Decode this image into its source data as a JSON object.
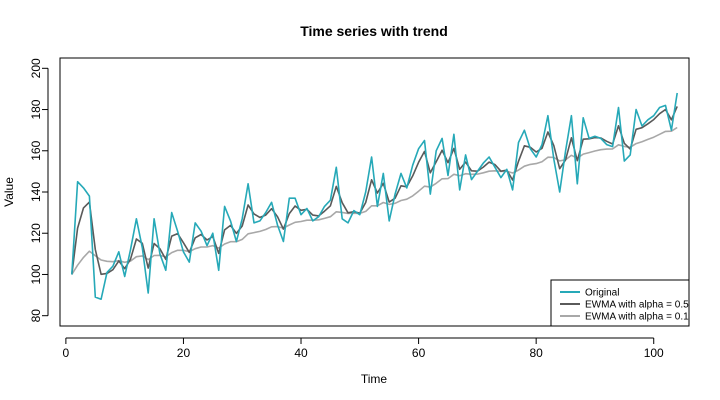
{
  "chart_data": {
    "type": "line",
    "title": "Time series with trend",
    "xlabel": "Time",
    "ylabel": "Value",
    "xlim": [
      -1,
      106
    ],
    "ylim": [
      75,
      205
    ],
    "x_ticks": [
      0,
      20,
      40,
      60,
      80,
      100
    ],
    "y_ticks": [
      80,
      100,
      120,
      140,
      160,
      180,
      200
    ],
    "grid": false,
    "legend_position": "bottom-right",
    "x": [
      1,
      2,
      3,
      4,
      5,
      6,
      7,
      8,
      9,
      10,
      11,
      12,
      13,
      14,
      15,
      16,
      17,
      18,
      19,
      20,
      21,
      22,
      23,
      24,
      25,
      26,
      27,
      28,
      29,
      30,
      31,
      32,
      33,
      34,
      35,
      36,
      37,
      38,
      39,
      40,
      41,
      42,
      43,
      44,
      45,
      46,
      47,
      48,
      49,
      50,
      51,
      52,
      53,
      54,
      55,
      56,
      57,
      58,
      59,
      60,
      61,
      62,
      63,
      64,
      65,
      66,
      67,
      68,
      69,
      70,
      71,
      72,
      73,
      74,
      75,
      76,
      77,
      78,
      79,
      80,
      81,
      82,
      83,
      84,
      85,
      86,
      87,
      88,
      89,
      90,
      91,
      92,
      93,
      94,
      95,
      96,
      97,
      98,
      99,
      100,
      101,
      102,
      103,
      104
    ],
    "series": [
      {
        "name": "Original",
        "color": "#26a9b8",
        "values": [
          100,
          145,
          142,
          138,
          89,
          88,
          101,
          104,
          111,
          99,
          112,
          127,
          113,
          91,
          127,
          110,
          102,
          130,
          121,
          111,
          106,
          125,
          121,
          114,
          120,
          102,
          133,
          126,
          116,
          127,
          144,
          125,
          126,
          130,
          135,
          124,
          116,
          137,
          137,
          129,
          132,
          126,
          128,
          133,
          136,
          152,
          127,
          125,
          131,
          129,
          140,
          157,
          133,
          149,
          126,
          139,
          149,
          142,
          153,
          161,
          165,
          139,
          160,
          166,
          148,
          168,
          141,
          158,
          146,
          150,
          154,
          157,
          152,
          147,
          151,
          141,
          164,
          170,
          161,
          157,
          163,
          177,
          156,
          140,
          160,
          177,
          144,
          176,
          166,
          167,
          166,
          163,
          162,
          181,
          155,
          158,
          180,
          172,
          175,
          177,
          181,
          182,
          170,
          188
        ]
      },
      {
        "name": "EWMA with alpha = 0.5",
        "color": "#5a5a5a",
        "values": [
          100,
          122.5,
          132.3,
          135.1,
          112.1,
          100.1,
          100.5,
          102.3,
          106.6,
          102.8,
          107.4,
          117.2,
          115.1,
          103.1,
          115.0,
          112.5,
          107.3,
          118.6,
          119.8,
          115.4,
          110.7,
          117.8,
          119.4,
          116.7,
          118.4,
          110.2,
          121.6,
          123.8,
          119.9,
          123.5,
          133.7,
          129.4,
          127.7,
          128.8,
          131.9,
          128.0,
          122.0,
          129.5,
          133.2,
          131.1,
          131.6,
          128.8,
          128.4,
          130.7,
          133.3,
          142.7,
          134.8,
          129.9,
          130.5,
          129.7,
          134.9,
          145.9,
          139.5,
          144.2,
          135.1,
          137.0,
          143.0,
          142.5,
          147.8,
          154.4,
          159.7,
          149.3,
          154.7,
          160.3,
          154.2,
          161.1,
          151.0,
          154.5,
          150.3,
          150.1,
          152.1,
          154.5,
          153.3,
          150.1,
          150.6,
          145.8,
          154.9,
          162.4,
          161.7,
          159.4,
          161.2,
          169.1,
          162.5,
          151.3,
          155.6,
          166.3,
          155.2,
          165.6,
          165.8,
          166.4,
          166.2,
          164.6,
          163.3,
          172.1,
          163.6,
          160.8,
          170.4,
          171.2,
          173.1,
          175.1,
          178.0,
          180.0,
          175.0,
          181.5
        ]
      },
      {
        "name": "EWMA with alpha = 0.1",
        "color": "#a8a8a8",
        "values": [
          100,
          104.5,
          108.3,
          111.3,
          109.1,
          107.0,
          106.4,
          106.2,
          106.7,
          105.9,
          106.5,
          108.6,
          109.0,
          107.2,
          109.2,
          109.3,
          108.5,
          110.6,
          111.7,
          111.7,
          111.1,
          112.5,
          113.3,
          113.3,
          114.0,
          112.8,
          114.8,
          115.9,
          115.9,
          117.0,
          119.7,
          120.3,
          120.9,
          121.8,
          123.1,
          123.2,
          122.5,
          124.0,
          125.3,
          125.7,
          126.3,
          126.3,
          126.5,
          127.2,
          128.0,
          130.4,
          130.1,
          129.6,
          129.7,
          129.6,
          130.6,
          133.3,
          133.3,
          134.9,
          134.0,
          134.5,
          135.9,
          136.5,
          138.1,
          140.4,
          142.8,
          142.4,
          144.2,
          146.4,
          146.5,
          148.6,
          147.9,
          148.9,
          148.6,
          148.7,
          149.3,
          150.1,
          150.3,
          150.0,
          150.1,
          149.2,
          150.6,
          152.5,
          153.4,
          153.8,
          154.7,
          156.9,
          156.8,
          155.1,
          155.6,
          157.8,
          156.4,
          158.4,
          159.1,
          159.9,
          160.5,
          160.8,
          160.9,
          162.9,
          162.1,
          161.7,
          163.5,
          164.4,
          165.5,
          166.6,
          168.0,
          169.4,
          169.5,
          171.3
        ]
      }
    ]
  }
}
